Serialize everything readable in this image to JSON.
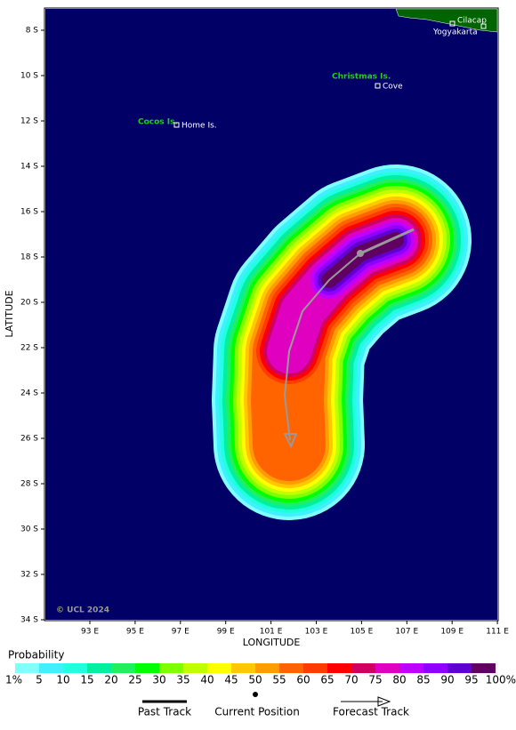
{
  "map": {
    "y_label": "LATITUDE",
    "x_label": "LONGITUDE",
    "lat_ticks": [
      "8 S",
      "10 S",
      "12 S",
      "14 S",
      "16 S",
      "18 S",
      "20 S",
      "22 S",
      "24 S",
      "26 S",
      "28 S",
      "30 S",
      "32 S",
      "34 S"
    ],
    "lon_ticks": [
      "93 E",
      "95 E",
      "97 E",
      "99 E",
      "101 E",
      "103 E",
      "105 E",
      "107 E",
      "109 E",
      "111 E"
    ],
    "islands": {
      "christmas": "Christmas Is.",
      "cocos": "Cocos Is."
    },
    "places": {
      "cilacap": "Cilacap",
      "yogyakarta": "Yogyakarta",
      "cove": "Cove",
      "home": "Home Is."
    },
    "copyright": "© UCL 2024"
  },
  "legend": {
    "title": "Probability",
    "levels": [
      "1%",
      "5",
      "10",
      "15",
      "20",
      "25",
      "30",
      "35",
      "40",
      "45",
      "50",
      "55",
      "60",
      "65",
      "70",
      "75",
      "80",
      "85",
      "90",
      "95",
      "100%"
    ],
    "colors": [
      "#80ffff",
      "#40f0ff",
      "#20ffe0",
      "#00f0a0",
      "#20f060",
      "#00ff00",
      "#80ff00",
      "#c0ff00",
      "#ffff00",
      "#ffc800",
      "#ff9c00",
      "#ff6400",
      "#ff3c00",
      "#ff0000",
      "#d00060",
      "#e000c0",
      "#c000ff",
      "#9000ff",
      "#6000d0",
      "#600060"
    ],
    "past_track": "Past Track",
    "current_position": "Current Position",
    "forecast_track": "Forecast Track"
  }
}
